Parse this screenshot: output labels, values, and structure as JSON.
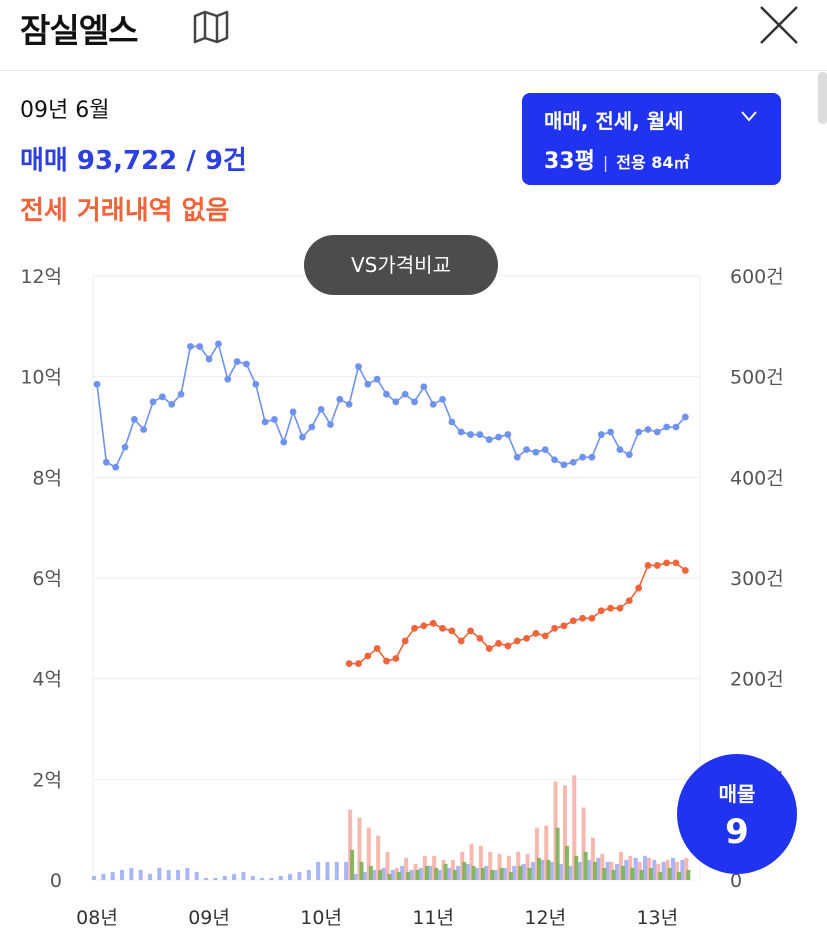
{
  "header": {
    "title": "잠실엘스",
    "map_icon": "map-icon",
    "close_icon": "close-icon"
  },
  "summary": {
    "date": "09년 6월",
    "sale_text": "매매 93,722 / 9건",
    "jeonse_text": "전세 거래내역 없음"
  },
  "filter": {
    "types_label": "매매, 전세, 월세",
    "size_label": "33평",
    "separator": "|",
    "area_label": "전용 84㎡"
  },
  "compare_button": {
    "label": "VS가격비교"
  },
  "listing_fab": {
    "label": "매물",
    "count": "9"
  },
  "colors": {
    "accent": "#1f33f0",
    "sale_line": "#6f93ec",
    "jeonse_line": "#f0643a",
    "sale_text": "#2c3fe0",
    "sale_bar": "#9aa8f2",
    "jeonse_bar": "#f6b1a6",
    "green_bar": "#7fb35a"
  },
  "chart_data": {
    "type": "line",
    "x_ticks": [
      "08년",
      "09년",
      "10년",
      "11년",
      "12년",
      "13년"
    ],
    "y_left_ticks": [
      "0",
      "2억",
      "4억",
      "6억",
      "8억",
      "10억",
      "12억"
    ],
    "y_left_range": [
      0,
      12
    ],
    "y_right_ticks": [
      "0",
      "100건",
      "200건",
      "300건",
      "400건",
      "500건",
      "600건"
    ],
    "y_right_range": [
      0,
      600
    ],
    "grid": true,
    "x_start_year": 2008,
    "series": [
      {
        "kind": "line",
        "axis": "left",
        "start_month": 0,
        "values": [
          9.85,
          8.3,
          8.2,
          8.6,
          9.15,
          8.95,
          9.5,
          9.6,
          9.45,
          9.65,
          10.6,
          10.6,
          10.35,
          10.65,
          9.95,
          10.3,
          10.25,
          9.85,
          9.1,
          9.15,
          8.7,
          9.3,
          8.8,
          9.0,
          9.35,
          9.05,
          9.55,
          9.45,
          10.2,
          9.85,
          9.95,
          9.65,
          9.5,
          9.65,
          9.5,
          9.8,
          9.45,
          9.55,
          9.1,
          8.9,
          8.85,
          8.85,
          8.75,
          8.8,
          8.85,
          8.4,
          8.55,
          8.5,
          8.55,
          8.35,
          8.25,
          8.3,
          8.4,
          8.4,
          8.85,
          8.9,
          8.55,
          8.45,
          8.9,
          8.95,
          8.9,
          9.0,
          9.0,
          9.2
        ]
      },
      {
        "kind": "line",
        "axis": "left",
        "start_month": 27,
        "values": [
          4.3,
          4.3,
          4.45,
          4.6,
          4.35,
          4.4,
          4.75,
          5.0,
          5.05,
          5.1,
          5.0,
          4.95,
          4.75,
          4.95,
          4.8,
          4.6,
          4.7,
          4.65,
          4.75,
          4.8,
          4.9,
          4.85,
          5.0,
          5.05,
          5.15,
          5.2,
          5.2,
          5.35,
          5.4,
          5.4,
          5.55,
          5.8,
          6.25,
          6.25,
          6.3,
          6.3,
          6.15
        ]
      },
      {
        "kind": "bar",
        "axis": "right",
        "start_month": 0,
        "values": [
          4,
          6,
          8,
          10,
          12,
          10,
          6,
          12,
          10,
          10,
          12,
          8,
          2,
          2,
          4,
          6,
          8,
          4,
          2,
          2,
          4,
          6,
          8,
          10,
          18,
          18,
          18,
          18,
          6,
          8,
          10,
          12,
          10,
          14,
          10,
          12,
          14,
          10,
          12,
          14,
          16,
          12,
          14,
          10,
          12,
          14,
          16,
          18,
          20,
          18,
          16,
          14,
          18,
          20,
          22,
          18,
          16,
          20,
          22,
          24,
          20,
          18,
          22,
          20
        ]
      },
      {
        "kind": "bar",
        "axis": "right",
        "start_month": 27,
        "values": [
          70,
          62,
          52,
          44,
          28,
          12,
          22,
          16,
          24,
          24,
          20,
          20,
          28,
          36,
          34,
          28,
          26,
          24,
          28,
          26,
          52,
          54,
          98,
          94,
          104,
          72,
          42,
          26,
          18,
          28,
          24,
          18,
          22,
          16,
          20,
          18,
          22
        ]
      },
      {
        "kind": "bar",
        "axis": "right",
        "start_month": 27,
        "values": [
          30,
          18,
          14,
          10,
          6,
          8,
          8,
          10,
          14,
          12,
          16,
          10,
          18,
          14,
          12,
          10,
          12,
          8,
          14,
          12,
          22,
          20,
          52,
          34,
          24,
          28,
          18,
          12,
          10,
          14,
          12,
          10,
          12,
          8,
          12,
          8,
          10
        ]
      }
    ]
  }
}
